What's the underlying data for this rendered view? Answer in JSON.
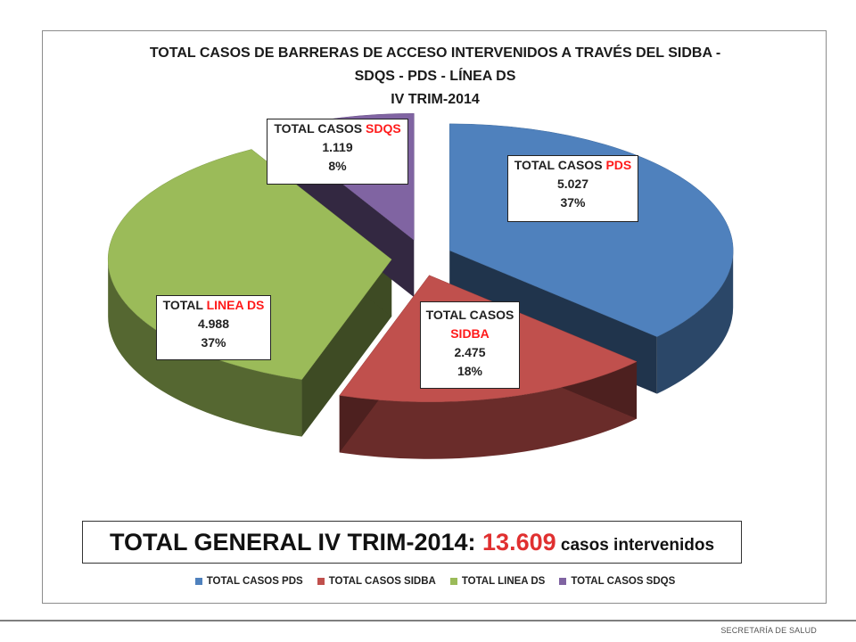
{
  "chart_data": {
    "type": "pie",
    "title_lines": [
      "TOTAL CASOS DE BARRERAS DE ACCESO INTERVENIDOS A TRAVÉS DEL SIDBA -",
      "SDQS - PDS - LÍNEA DS",
      "IV TRIM-2014"
    ],
    "exploded": true,
    "three_d": true,
    "series": [
      {
        "name": "TOTAL CASOS PDS",
        "value": 5027,
        "value_label": "5.027",
        "pct_label": "37%",
        "color": "#4f81bd",
        "label_prefix": "TOTAL CASOS ",
        "label_highlight": "PDS"
      },
      {
        "name": "TOTAL CASOS SIDBA",
        "value": 2475,
        "value_label": "2.475",
        "pct_label": "18%",
        "color": "#c0504d",
        "label_prefix": "TOTAL CASOS",
        "label_highlight": "SIDBA"
      },
      {
        "name": "TOTAL LINEA DS",
        "value": 4988,
        "value_label": "4.988",
        "pct_label": "37%",
        "color": "#9bbb59",
        "label_prefix": "TOTAL ",
        "label_highlight": "LINEA DS"
      },
      {
        "name": "TOTAL CASOS SDQS",
        "value": 1119,
        "value_label": "1.119",
        "pct_label": "8%",
        "color": "#8064a2",
        "label_prefix": "TOTAL CASOS ",
        "label_highlight": "SDQS"
      }
    ],
    "legend_position": "bottom"
  },
  "total_box": {
    "prefix": "TOTAL GENERAL IV TRIM-2014: ",
    "number": "13.609",
    "suffix": " casos intervenidos"
  },
  "footer": {
    "text": "SECRETARÍA DE SALUD"
  }
}
